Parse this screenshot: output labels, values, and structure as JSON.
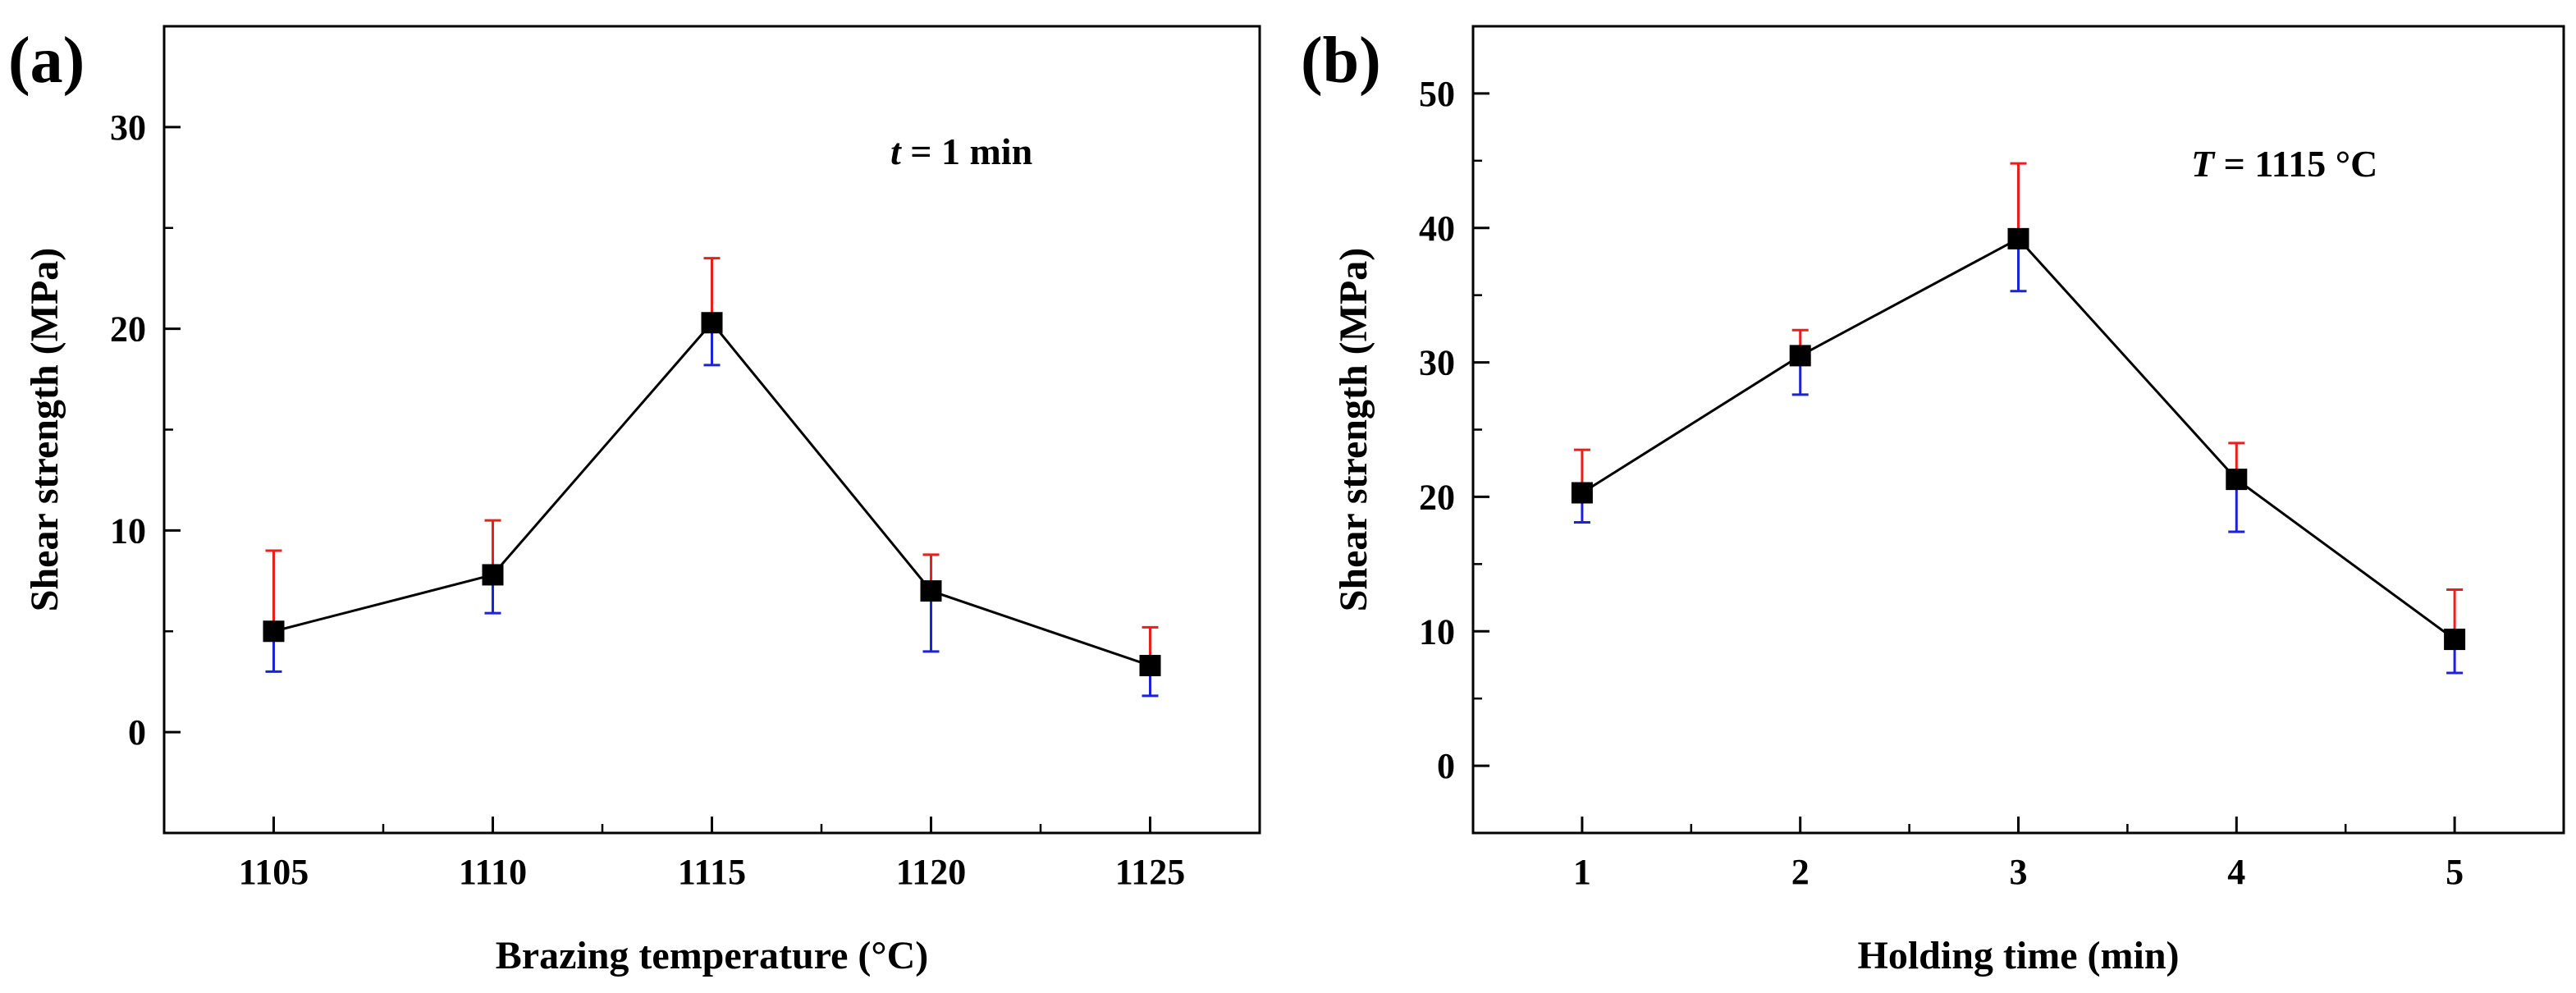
{
  "chart_data": [
    {
      "type": "line",
      "panel_label": "(a)",
      "xlabel": "Brazing temperature (°C)",
      "ylabel": "Shear strength (MPa)",
      "annotation": {
        "var": "t",
        "text": " = 1 min"
      },
      "x": [
        1105,
        1110,
        1115,
        1120,
        1125
      ],
      "x_tick_labels": [
        "1105",
        "1110",
        "1115",
        "1120",
        "1125"
      ],
      "xlim": [
        1102.5,
        1127.5
      ],
      "y": [
        5.0,
        7.8,
        20.3,
        7.0,
        3.3
      ],
      "err_upper": [
        9.0,
        10.5,
        23.5,
        8.8,
        5.2
      ],
      "err_lower": [
        3.0,
        5.9,
        18.2,
        4.0,
        1.8
      ],
      "ylim": [
        -5,
        35
      ],
      "y_ticks": [
        0,
        10,
        20,
        30
      ],
      "y_tick_labels": [
        "0",
        "10",
        "20",
        "30"
      ],
      "y_minor_ticks": [
        -5,
        5,
        15,
        25
      ],
      "x_minor_ticks": [
        1107.5,
        1112.5,
        1117.5,
        1122.5
      ]
    },
    {
      "type": "line",
      "panel_label": "(b)",
      "xlabel": "Holding time (min)",
      "ylabel": "Shear strength (MPa)",
      "annotation": {
        "var": "T",
        "text": " = 1115 °C"
      },
      "x": [
        1,
        2,
        3,
        4,
        5
      ],
      "x_tick_labels": [
        "1",
        "2",
        "3",
        "4",
        "5"
      ],
      "xlim": [
        0.5,
        5.5
      ],
      "y": [
        20.3,
        30.5,
        39.2,
        21.3,
        9.4
      ],
      "err_upper": [
        23.5,
        32.4,
        44.8,
        24.0,
        13.1
      ],
      "err_lower": [
        18.1,
        27.6,
        35.3,
        17.4,
        6.9
      ],
      "ylim": [
        -5,
        55
      ],
      "y_ticks": [
        0,
        10,
        20,
        30,
        40,
        50
      ],
      "y_tick_labels": [
        "0",
        "10",
        "20",
        "30",
        "40",
        "50"
      ],
      "y_minor_ticks": [
        -5,
        5,
        15,
        25,
        35,
        45
      ],
      "x_minor_ticks": [
        1.5,
        2.5,
        3.5,
        4.5
      ]
    }
  ],
  "colors": {
    "axis": "#000000",
    "line": "#000000",
    "marker": "#000000",
    "err_upper": "#e8201c",
    "err_lower": "#1c22d8"
  }
}
